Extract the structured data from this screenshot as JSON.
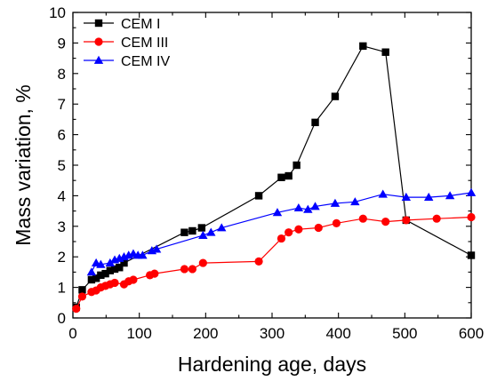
{
  "chart_data": {
    "type": "line",
    "xlabel": "Hardening age, days",
    "ylabel": "Mass variation, %",
    "xlim": [
      0,
      600
    ],
    "ylim": [
      0,
      10
    ],
    "x_ticks": [
      0,
      100,
      200,
      300,
      400,
      500,
      600
    ],
    "y_ticks": [
      0,
      1,
      2,
      3,
      4,
      5,
      6,
      7,
      8,
      9,
      10
    ],
    "grid": false,
    "legend_position": "top-left",
    "series": [
      {
        "name": "CEM I",
        "color": "#000000",
        "marker": "square",
        "x": [
          5,
          14,
          28,
          35,
          42,
          49,
          56,
          63,
          70,
          77,
          168,
          180,
          194,
          280,
          314,
          325,
          337,
          365,
          395,
          437,
          471,
          502,
          600
        ],
        "y": [
          0.35,
          0.92,
          1.25,
          1.3,
          1.4,
          1.45,
          1.55,
          1.6,
          1.65,
          1.8,
          2.8,
          2.85,
          2.95,
          4.0,
          4.6,
          4.65,
          5.0,
          6.4,
          7.25,
          8.9,
          8.7,
          3.2,
          2.05
        ]
      },
      {
        "name": "CEM III",
        "color": "#ff0000",
        "marker": "circle",
        "x": [
          5,
          14,
          28,
          35,
          42,
          49,
          56,
          63,
          77,
          84,
          91,
          116,
          123,
          168,
          180,
          196,
          280,
          314,
          325,
          340,
          370,
          397,
          437,
          471,
          502,
          548,
          600
        ],
        "y": [
          0.3,
          0.7,
          0.85,
          0.9,
          1.0,
          1.05,
          1.1,
          1.15,
          1.1,
          1.2,
          1.25,
          1.4,
          1.45,
          1.6,
          1.6,
          1.8,
          1.85,
          2.6,
          2.8,
          2.9,
          2.95,
          3.1,
          3.25,
          3.15,
          3.2,
          3.25,
          3.3
        ]
      },
      {
        "name": "CEM IV",
        "color": "#0000ff",
        "marker": "triangle",
        "x": [
          28,
          35,
          42,
          56,
          63,
          70,
          77,
          84,
          91,
          98,
          105,
          119,
          126,
          196,
          208,
          224,
          308,
          340,
          354,
          365,
          395,
          425,
          467,
          502,
          536,
          568,
          600
        ],
        "y": [
          1.5,
          1.8,
          1.75,
          1.8,
          1.9,
          1.95,
          2.0,
          2.05,
          2.1,
          2.05,
          2.05,
          2.2,
          2.25,
          2.7,
          2.8,
          2.95,
          3.45,
          3.6,
          3.55,
          3.65,
          3.75,
          3.8,
          4.05,
          3.95,
          3.95,
          4.0,
          4.1
        ]
      }
    ]
  }
}
